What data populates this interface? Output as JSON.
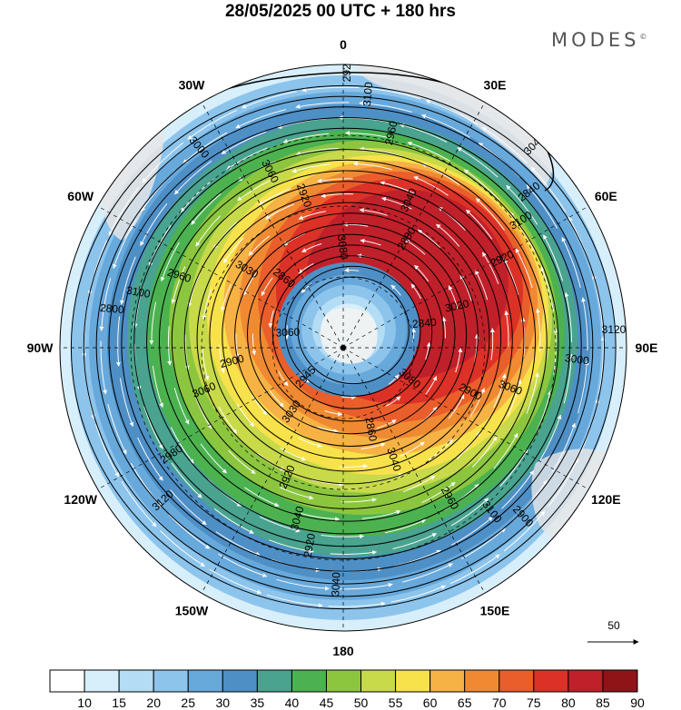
{
  "header": {
    "title": "28/05/2025  00 UTC  + 180 hrs",
    "brand": "MODES",
    "brand_mark": "©"
  },
  "map": {
    "projection": "south-polar-stereographic",
    "longitude_labels": [
      {
        "text": "0",
        "lon": 0
      },
      {
        "text": "30E",
        "lon": 30
      },
      {
        "text": "60E",
        "lon": 60
      },
      {
        "text": "90E",
        "lon": 90
      },
      {
        "text": "120E",
        "lon": 120
      },
      {
        "text": "150E",
        "lon": 150
      },
      {
        "text": "180",
        "lon": 180
      },
      {
        "text": "150W",
        "lon": -150
      },
      {
        "text": "120W",
        "lon": -120
      },
      {
        "text": "90W",
        "lon": -90
      },
      {
        "text": "60W",
        "lon": -60
      },
      {
        "text": "30W",
        "lon": -30
      }
    ],
    "contour_labels": [
      "3120",
      "3120",
      "3100",
      "3100",
      "3100",
      "3100",
      "3040",
      "3060",
      "3060",
      "3060",
      "3040",
      "3040",
      "3030",
      "3020",
      "3030",
      "3080",
      "3080",
      "3060",
      "3040",
      "3040",
      "3000",
      "3000",
      "2980",
      "2960",
      "2960",
      "2960",
      "2920",
      "2920",
      "2920",
      "2900",
      "2900",
      "2880",
      "2860",
      "2860",
      "2840",
      "2945",
      "2920",
      "2900",
      "2800",
      "2840",
      "2920"
    ],
    "wind_reference": {
      "value": "50",
      "unit": ""
    },
    "colors": {
      "background_land": "#e6e6e6",
      "contours": "#000000",
      "streamlines": "#ffffff"
    }
  },
  "colorbar": {
    "labels": [
      "10",
      "15",
      "20",
      "25",
      "30",
      "35",
      "40",
      "45",
      "50",
      "55",
      "60",
      "65",
      "70",
      "75",
      "80",
      "85",
      "90"
    ],
    "colors": [
      "#ffffff",
      "#d7eefb",
      "#b3dcf5",
      "#8cc4ec",
      "#68a9dc",
      "#4e8fc6",
      "#49a38f",
      "#4cb250",
      "#8cc63f",
      "#c8d94a",
      "#f7e24b",
      "#f6b244",
      "#f08a32",
      "#ea5e2b",
      "#dc3127",
      "#c0202a",
      "#8f1418"
    ]
  }
}
